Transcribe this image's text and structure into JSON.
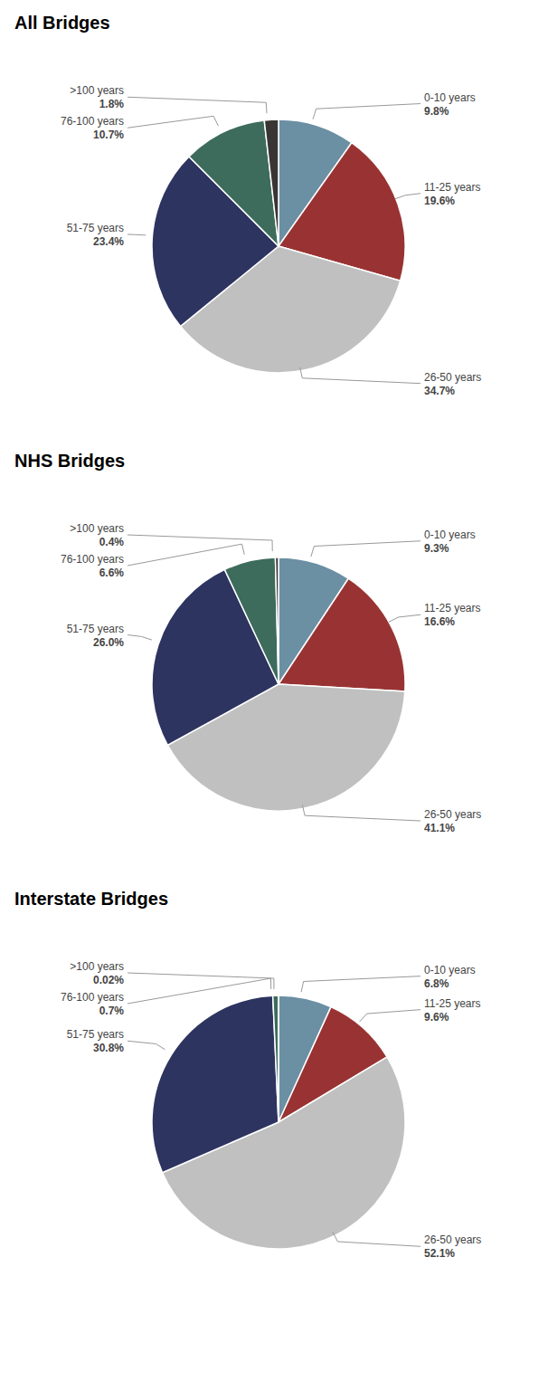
{
  "chart_data": [
    {
      "type": "pie",
      "title": "All Bridges",
      "categories": [
        "0-10 years",
        "11-25 years",
        "26-50 years",
        "51-75 years",
        "76-100 years",
        ">100 years"
      ],
      "values": [
        9.8,
        19.6,
        34.7,
        23.4,
        10.7,
        1.8
      ],
      "value_labels": [
        "9.8%",
        "19.6%",
        "34.7%",
        "23.4%",
        "10.7%",
        "1.8%"
      ],
      "colors": [
        "#6b8fa3",
        "#993333",
        "#c0c0c0",
        "#2d3460",
        "#3d6b5c",
        "#3a3535"
      ]
    },
    {
      "type": "pie",
      "title": "NHS Bridges",
      "categories": [
        "0-10 years",
        "11-25 years",
        "26-50 years",
        "51-75 years",
        "76-100 years",
        ">100 years"
      ],
      "values": [
        9.3,
        16.6,
        41.1,
        26.0,
        6.6,
        0.4
      ],
      "value_labels": [
        "9.3%",
        "16.6%",
        "41.1%",
        "26.0%",
        "6.6%",
        "0.4%"
      ],
      "colors": [
        "#6b8fa3",
        "#993333",
        "#c0c0c0",
        "#2d3460",
        "#3d6b5c",
        "#3a3535"
      ]
    },
    {
      "type": "pie",
      "title": "Interstate Bridges",
      "categories": [
        "0-10 years",
        "11-25 years",
        "26-50 years",
        "51-75 years",
        "76-100 years",
        ">100 years"
      ],
      "values": [
        6.8,
        9.6,
        52.1,
        30.8,
        0.7,
        0.02
      ],
      "value_labels": [
        "6.8%",
        "9.6%",
        "52.1%",
        "30.8%",
        "0.7%",
        "0.02%"
      ],
      "colors": [
        "#6b8fa3",
        "#993333",
        "#c0c0c0",
        "#2d3460",
        "#3d6b5c",
        "#3a3535"
      ]
    }
  ]
}
